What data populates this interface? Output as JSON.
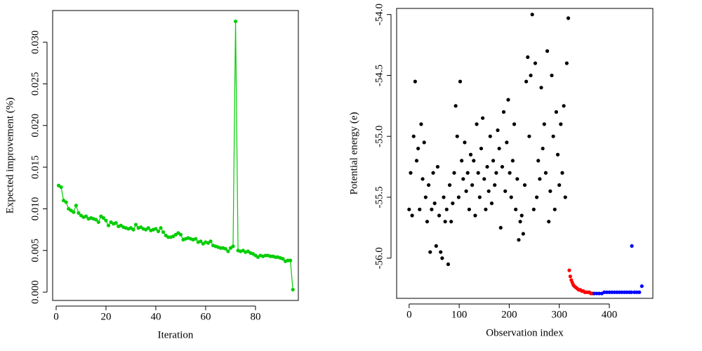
{
  "chart_data": [
    {
      "type": "line",
      "xlabel": "Iteration",
      "ylabel": "Expected improvement (%)",
      "xlim": [
        -1.4,
        97.2
      ],
      "ylim": [
        -0.001,
        0.0338
      ],
      "xticks": [
        0,
        20,
        40,
        60,
        80
      ],
      "yticks": [
        {
          "value": 0,
          "label": "0.000"
        },
        0.005,
        {
          "value": 0.01,
          "label": "0.010"
        },
        0.015,
        {
          "value": 0.02,
          "label": "0.020"
        },
        0.025,
        {
          "value": 0.03,
          "label": "0.030"
        }
      ],
      "color": "#00cd00",
      "x": [
        1,
        2,
        3,
        4,
        5,
        6,
        7,
        8,
        9,
        10,
        11,
        12,
        13,
        14,
        15,
        16,
        17,
        18,
        19,
        20,
        21,
        22,
        23,
        24,
        25,
        26,
        27,
        28,
        29,
        30,
        31,
        32,
        33,
        34,
        35,
        36,
        37,
        38,
        39,
        40,
        41,
        42,
        43,
        44,
        45,
        46,
        47,
        48,
        49,
        50,
        51,
        52,
        53,
        54,
        55,
        56,
        57,
        58,
        59,
        60,
        61,
        62,
        63,
        64,
        65,
        66,
        67,
        68,
        69,
        70,
        71,
        72,
        73,
        74,
        75,
        76,
        77,
        78,
        79,
        80,
        81,
        82,
        83,
        84,
        85,
        86,
        87,
        88,
        89,
        90,
        91,
        92,
        93,
        94,
        95
      ],
      "values": [
        0.0128,
        0.0126,
        0.011,
        0.0108,
        0.01,
        0.0098,
        0.0096,
        0.0104,
        0.0095,
        0.0092,
        0.009,
        0.0091,
        0.0088,
        0.0089,
        0.0088,
        0.0087,
        0.0084,
        0.0091,
        0.0089,
        0.0086,
        0.008,
        0.0084,
        0.0082,
        0.0083,
        0.0079,
        0.008,
        0.0078,
        0.0077,
        0.0076,
        0.0077,
        0.0075,
        0.0081,
        0.0077,
        0.0078,
        0.0076,
        0.0075,
        0.0077,
        0.0074,
        0.0075,
        0.0076,
        0.0073,
        0.0077,
        0.0072,
        0.0068,
        0.0066,
        0.0066,
        0.0067,
        0.0069,
        0.0071,
        0.0069,
        0.0063,
        0.0064,
        0.0065,
        0.0064,
        0.0063,
        0.0064,
        0.006,
        0.0061,
        0.0058,
        0.006,
        0.0059,
        0.0061,
        0.0056,
        0.0055,
        0.0054,
        0.0053,
        0.0053,
        0.0052,
        0.0049,
        0.0053,
        0.0055,
        0.0325,
        0.005,
        0.0049,
        0.005,
        0.0048,
        0.0049,
        0.0047,
        0.0046,
        0.0044,
        0.0042,
        0.0044,
        0.0043,
        0.0044,
        0.0044,
        0.0043,
        0.0043,
        0.0042,
        0.0042,
        0.0041,
        0.004,
        0.0037,
        0.0038,
        0.0038,
        0.0003
      ]
    },
    {
      "type": "scatter",
      "xlabel": "Observation index",
      "ylabel": "Potential energy (e)",
      "xlim": [
        -25,
        487
      ],
      "ylim": [
        -56.33,
        -53.95
      ],
      "xticks": [
        0,
        100,
        200,
        300,
        400
      ],
      "yticks": [
        {
          "value": -56,
          "label": "-56.0"
        },
        -55.5,
        {
          "value": -55,
          "label": "-55.0"
        },
        -54.5,
        {
          "value": -54,
          "label": "-54.0"
        }
      ],
      "series": [
        {
          "color": "#000000",
          "x": [
            0,
            3,
            6,
            9,
            12,
            15,
            18,
            21,
            24,
            27,
            30,
            33,
            36,
            39,
            42,
            45,
            48,
            51,
            54,
            57,
            60,
            63,
            66,
            69,
            72,
            75,
            78,
            81,
            84,
            87,
            90,
            93,
            96,
            99,
            102,
            105,
            108,
            111,
            114,
            117,
            120,
            123,
            126,
            129,
            132,
            135,
            138,
            141,
            144,
            147,
            150,
            153,
            156,
            159,
            162,
            165,
            168,
            171,
            174,
            177,
            180,
            183,
            186,
            189,
            192,
            195,
            198,
            201,
            204,
            207,
            210,
            213,
            216,
            219,
            222,
            225,
            228,
            231,
            234,
            237,
            240,
            243,
            246,
            249,
            252,
            255,
            258,
            261,
            264,
            267,
            270,
            273,
            276,
            279,
            282,
            285,
            288,
            291,
            294,
            297,
            300,
            303,
            306,
            309,
            312,
            315,
            318
          ],
          "values": [
            -55.6,
            -55.3,
            -55.65,
            -55.0,
            -54.55,
            -55.2,
            -55.1,
            -55.6,
            -54.9,
            -55.35,
            -55.05,
            -55.5,
            -55.7,
            -55.4,
            -55.95,
            -55.6,
            -55.3,
            -55.55,
            -55.9,
            -55.25,
            -55.65,
            -55.95,
            -56.0,
            -55.5,
            -55.7,
            -55.6,
            -56.05,
            -55.4,
            -55.7,
            -55.55,
            -55.3,
            -54.75,
            -55.0,
            -55.5,
            -54.55,
            -55.2,
            -55.35,
            -55.05,
            -55.45,
            -55.3,
            -55.6,
            -55.15,
            -55.4,
            -55.2,
            -55.65,
            -54.9,
            -55.3,
            -55.5,
            -55.1,
            -54.85,
            -55.35,
            -55.6,
            -55.25,
            -55.45,
            -55.0,
            -55.55,
            -55.2,
            -55.4,
            -55.3,
            -54.95,
            -55.1,
            -55.75,
            -55.25,
            -54.8,
            -55.45,
            -55.05,
            -54.7,
            -55.3,
            -55.5,
            -55.2,
            -54.9,
            -55.6,
            -55.35,
            -55.85,
            -55.7,
            -55.65,
            -55.8,
            -55.4,
            -54.55,
            -54.35,
            -55.0,
            -54.5,
            -54.0,
            -55.6,
            -54.4,
            -55.5,
            -55.2,
            -55.35,
            -54.6,
            -55.1,
            -54.9,
            -55.3,
            -54.3,
            -55.7,
            -55.45,
            -54.5,
            -55.0,
            -55.6,
            -54.8,
            -55.15,
            -55.4,
            -54.9,
            -55.3,
            -54.75,
            -55.5,
            -54.4,
            -54.03
          ]
        },
        {
          "color": "#ff0000",
          "x": [
            320,
            322,
            324,
            326,
            328,
            330,
            333,
            336,
            339,
            342,
            345,
            348,
            351,
            354,
            357,
            360,
            363,
            366,
            369
          ],
          "values": [
            -56.1,
            -56.15,
            -56.18,
            -56.2,
            -56.22,
            -56.23,
            -56.24,
            -56.25,
            -56.26,
            -56.26,
            -56.27,
            -56.27,
            -56.28,
            -56.28,
            -56.28,
            -56.28,
            -56.29,
            -56.29,
            -56.29
          ]
        },
        {
          "color": "#0000ff",
          "x": [
            370,
            375,
            380,
            385,
            390,
            395,
            400,
            405,
            410,
            415,
            420,
            425,
            430,
            435,
            440,
            444,
            445,
            450,
            455,
            460,
            465
          ],
          "values": [
            -56.29,
            -56.29,
            -56.29,
            -56.29,
            -56.28,
            -56.28,
            -56.28,
            -56.28,
            -56.28,
            -56.28,
            -56.28,
            -56.28,
            -56.28,
            -56.28,
            -56.28,
            -56.28,
            -55.9,
            -56.28,
            -56.28,
            -56.28,
            -56.23
          ]
        }
      ]
    }
  ]
}
